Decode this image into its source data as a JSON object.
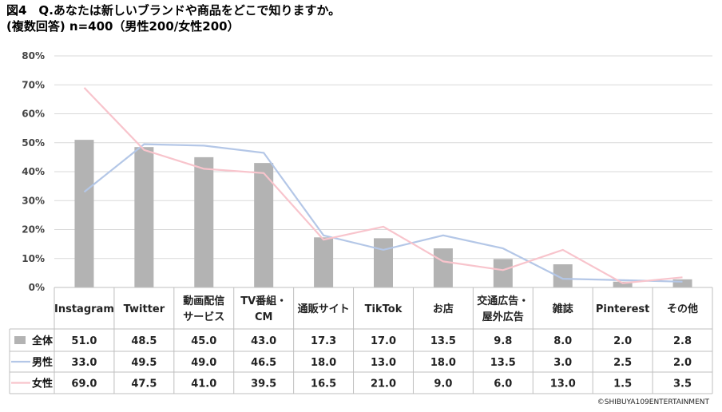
{
  "title_line1": "図4　Q.あなたは新しいブランドや商品をどこで知りますか。",
  "title_line2": "(複数回答) n=400（男性200/女性200）",
  "copyright": "©SHIBUYA109ENTERTAINMENT",
  "colors": {
    "total": "#b3b3b3",
    "male": "#b4c7e7",
    "female": "#f8c4cc"
  },
  "chart_data": {
    "type": "bar",
    "ylim": [
      0,
      80
    ],
    "yticks": [
      "0%",
      "10%",
      "20%",
      "30%",
      "40%",
      "50%",
      "60%",
      "70%",
      "80%"
    ],
    "categories": [
      [
        "Instagram"
      ],
      [
        "Twitter"
      ],
      [
        "動画配信",
        "サービス"
      ],
      [
        "TV番組・",
        "CM"
      ],
      [
        "通販サイト"
      ],
      [
        "TikTok"
      ],
      [
        "お店"
      ],
      [
        "交通広告・",
        "屋外広告"
      ],
      [
        "雑誌"
      ],
      [
        "Pinterest"
      ],
      [
        "その他"
      ]
    ],
    "series": [
      {
        "name": "全体",
        "kind": "bar",
        "values": [
          51.0,
          48.5,
          45.0,
          43.0,
          17.3,
          17.0,
          13.5,
          9.8,
          8.0,
          2.0,
          2.8
        ],
        "labels": [
          "51.0",
          "48.5",
          "45.0",
          "43.0",
          "17.3",
          "17.0",
          "13.5",
          "9.8",
          "8.0",
          "2.0",
          "2.8"
        ]
      },
      {
        "name": "男性",
        "kind": "line",
        "values": [
          33.0,
          49.5,
          49.0,
          46.5,
          18.0,
          13.0,
          18.0,
          13.5,
          3.0,
          2.5,
          2.0
        ],
        "labels": [
          "33.0",
          "49.5",
          "49.0",
          "46.5",
          "18.0",
          "13.0",
          "18.0",
          "13.5",
          "3.0",
          "2.5",
          "2.0"
        ]
      },
      {
        "name": "女性",
        "kind": "line",
        "values": [
          69.0,
          47.5,
          41.0,
          39.5,
          16.5,
          21.0,
          9.0,
          6.0,
          13.0,
          1.5,
          3.5
        ],
        "labels": [
          "69.0",
          "47.5",
          "41.0",
          "39.5",
          "16.5",
          "21.0",
          "9.0",
          "6.0",
          "13.0",
          "1.5",
          "3.5"
        ]
      }
    ]
  }
}
